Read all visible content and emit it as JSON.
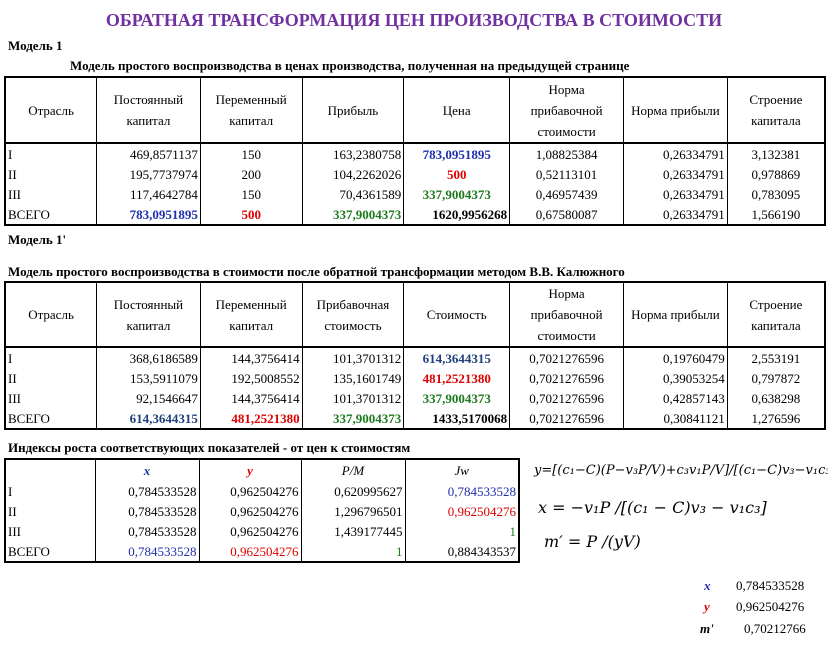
{
  "title": "ОБРАТНАЯ ТРАНСФОРМАЦИЯ ЦЕН ПРОИЗВОДСТВА В СТОИМОСТИ",
  "model1": {
    "label": "Модель 1",
    "subtitle": "Модель простого воспроизводства в ценах производства, полученная на предыдущей странице",
    "headers": [
      "Отрасль",
      "Постоянный капитал",
      "Переменный капитал",
      "Прибыль",
      "Цена",
      "Норма прибавочной стоимости",
      "Норма прибыли",
      "Строение капитала"
    ],
    "rows": [
      [
        "I",
        "469,8571137",
        "150",
        "163,2380758",
        "783,0951895",
        "1,08825384",
        "0,26334791",
        "3,132381"
      ],
      [
        "II",
        "195,7737974",
        "200",
        "104,2262026",
        "500",
        "0,52113101",
        "0,26334791",
        "0,978869"
      ],
      [
        "III",
        "117,4642784",
        "150",
        "70,4361589",
        "337,9004373",
        "0,46957439",
        "0,26334791",
        "0,783095"
      ],
      [
        "ВСЕГО",
        "783,0951895",
        "500",
        "337,9004373",
        "1620,9956268",
        "0,67580087",
        "0,26334791",
        "1,566190"
      ]
    ]
  },
  "model1p": {
    "label": "Модель 1'",
    "subtitle": "Модель простого воспроизводства в стоимости после обратной трансформации методом  В.В. Калюжного",
    "headers": [
      "Отрасль",
      "Постоянный капитал",
      "Переменный капитал",
      "Прибавочная стоимость",
      "Стоимость",
      "Норма прибавочной стоимости",
      "Норма прибыли",
      "Строение капитала"
    ],
    "rows": [
      [
        "I",
        "368,6186589",
        "144,3756414",
        "101,3701312",
        "614,3644315",
        "0,7021276596",
        "0,19760479",
        "2,553191"
      ],
      [
        "II",
        "153,5911079",
        "192,5008552",
        "135,1601749",
        "481,2521380",
        "0,7021276596",
        "0,39053254",
        "0,797872"
      ],
      [
        "III",
        "92,1546647",
        "144,3756414",
        "101,3701312",
        "337,9004373",
        "0,7021276596",
        "0,42857143",
        "0,638298"
      ],
      [
        "ВСЕГО",
        "614,3644315",
        "481,2521380",
        "337,9004373",
        "1433,5170068",
        "0,7021276596",
        "0,30841121",
        "1,276596"
      ]
    ]
  },
  "indices": {
    "label": "Индексы роста соответствующих показателей - от цен к стоимостям",
    "headers": [
      "",
      "x",
      "y",
      "P/M",
      "Jw"
    ],
    "rows": [
      [
        "I",
        "0,784533528",
        "0,962504276",
        "0,620995627",
        "0,784533528"
      ],
      [
        "II",
        "0,784533528",
        "0,962504276",
        "1,296796501",
        "0,962504276"
      ],
      [
        "III",
        "0,784533528",
        "0,962504276",
        "1,439177445",
        "1"
      ],
      [
        "ВСЕГО",
        "0,784533528",
        "0,962504276",
        "1",
        "0,884343537"
      ]
    ]
  },
  "formulas": {
    "f1": "y=[(c₁−C)(P−v₃P/V)+c₃v₁P/V]/[(c₁−C)v₃−v₁c₃]",
    "f2": "x = −v₁P /[(c₁ − C)v₃ − v₁c₃]",
    "f3": "m′ = P /(yV)"
  },
  "results": [
    {
      "name": "x",
      "value": "0,784533528"
    },
    {
      "name": "y",
      "value": "0,962504276"
    },
    {
      "name": "m'",
      "value": "0,70212766"
    }
  ],
  "colors": {
    "title": "#7030a0",
    "blue": "#1f2fb0",
    "red": "#e00000",
    "green": "#1e7a1e"
  }
}
